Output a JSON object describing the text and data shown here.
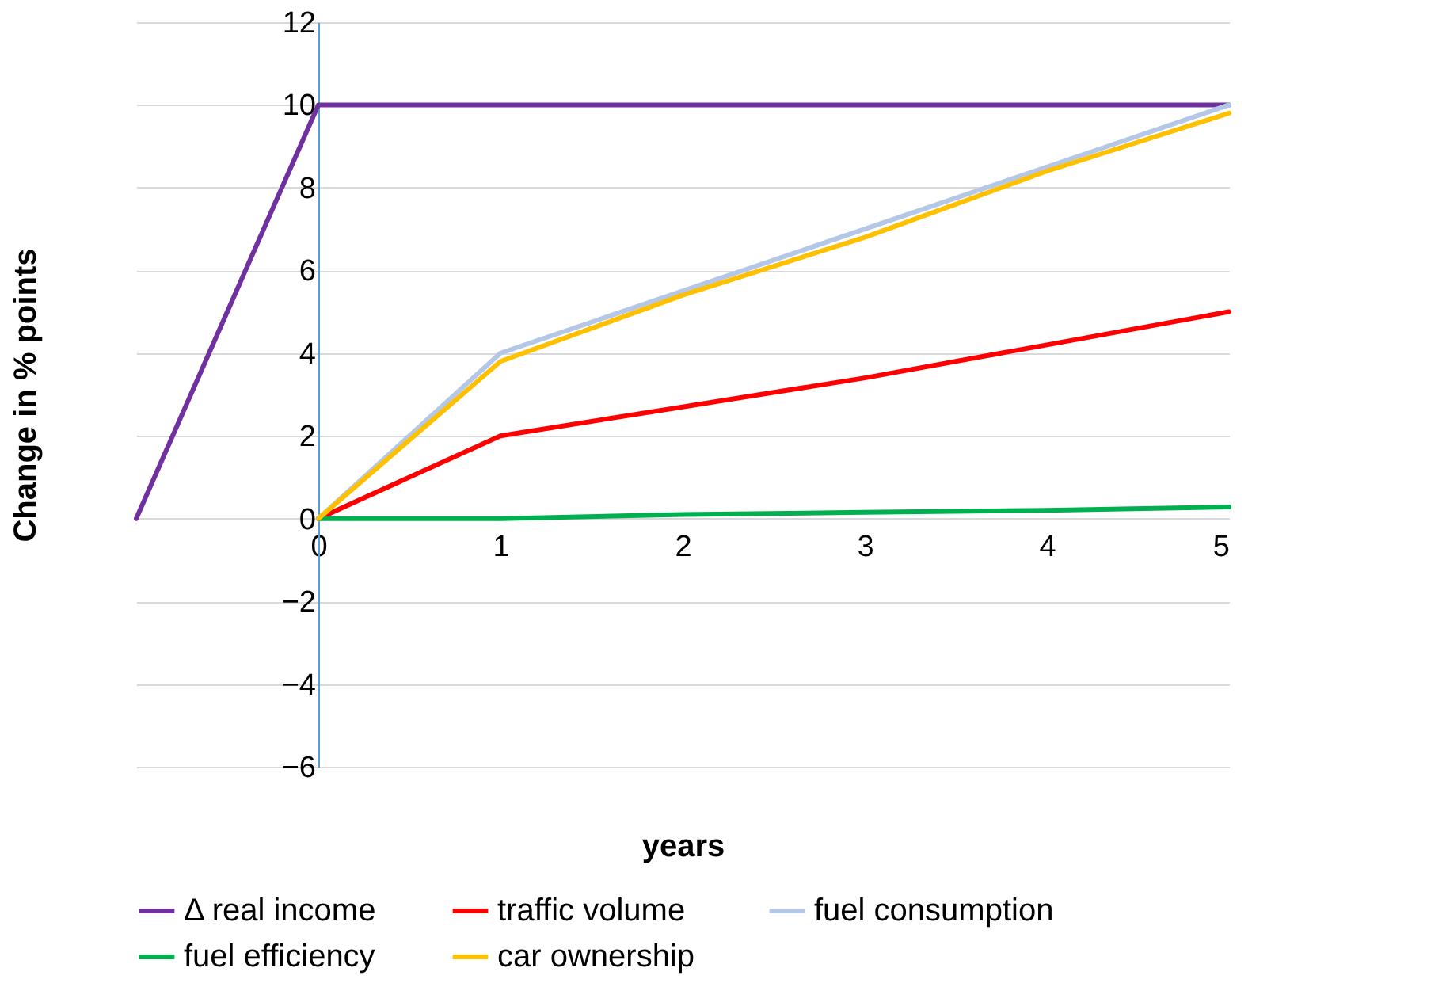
{
  "chart_data": {
    "type": "line",
    "xlabel": "years",
    "ylabel": "Change in % points",
    "xlim": [
      -1,
      5
    ],
    "xticks": [
      0,
      1,
      2,
      3,
      4,
      5
    ],
    "ylim": [
      -6,
      12
    ],
    "yticks": [
      -6,
      -4,
      -2,
      0,
      2,
      4,
      6,
      8,
      10,
      12
    ],
    "grid": "y",
    "legend": "bottom",
    "line_style": "solid",
    "series": [
      {
        "name": "Δ real income",
        "color": "#7030a0",
        "x": [
          -1,
          0,
          1,
          2,
          3,
          4,
          5
        ],
        "values": [
          0,
          10,
          10,
          10,
          10,
          10,
          10
        ]
      },
      {
        "name": "traffic volume",
        "color": "#ff0000",
        "x": [
          0,
          1,
          2,
          3,
          4,
          5
        ],
        "values": [
          0,
          2,
          2.7,
          3.4,
          4.2,
          5
        ]
      },
      {
        "name": "fuel consumption",
        "color": "#b4c7e7",
        "x": [
          0,
          1,
          2,
          3,
          4,
          5
        ],
        "values": [
          0,
          4,
          5.5,
          7,
          8.5,
          10
        ]
      },
      {
        "name": "fuel efficiency",
        "color": "#00b050",
        "x": [
          0,
          1,
          2,
          3,
          4,
          5
        ],
        "values": [
          0,
          0,
          0.1,
          0.15,
          0.2,
          0.28
        ]
      },
      {
        "name": "car ownership",
        "color": "#ffc000",
        "x": [
          0,
          1,
          2,
          3,
          4,
          5
        ],
        "values": [
          0,
          3.8,
          5.4,
          6.8,
          8.4,
          9.8
        ]
      }
    ]
  }
}
